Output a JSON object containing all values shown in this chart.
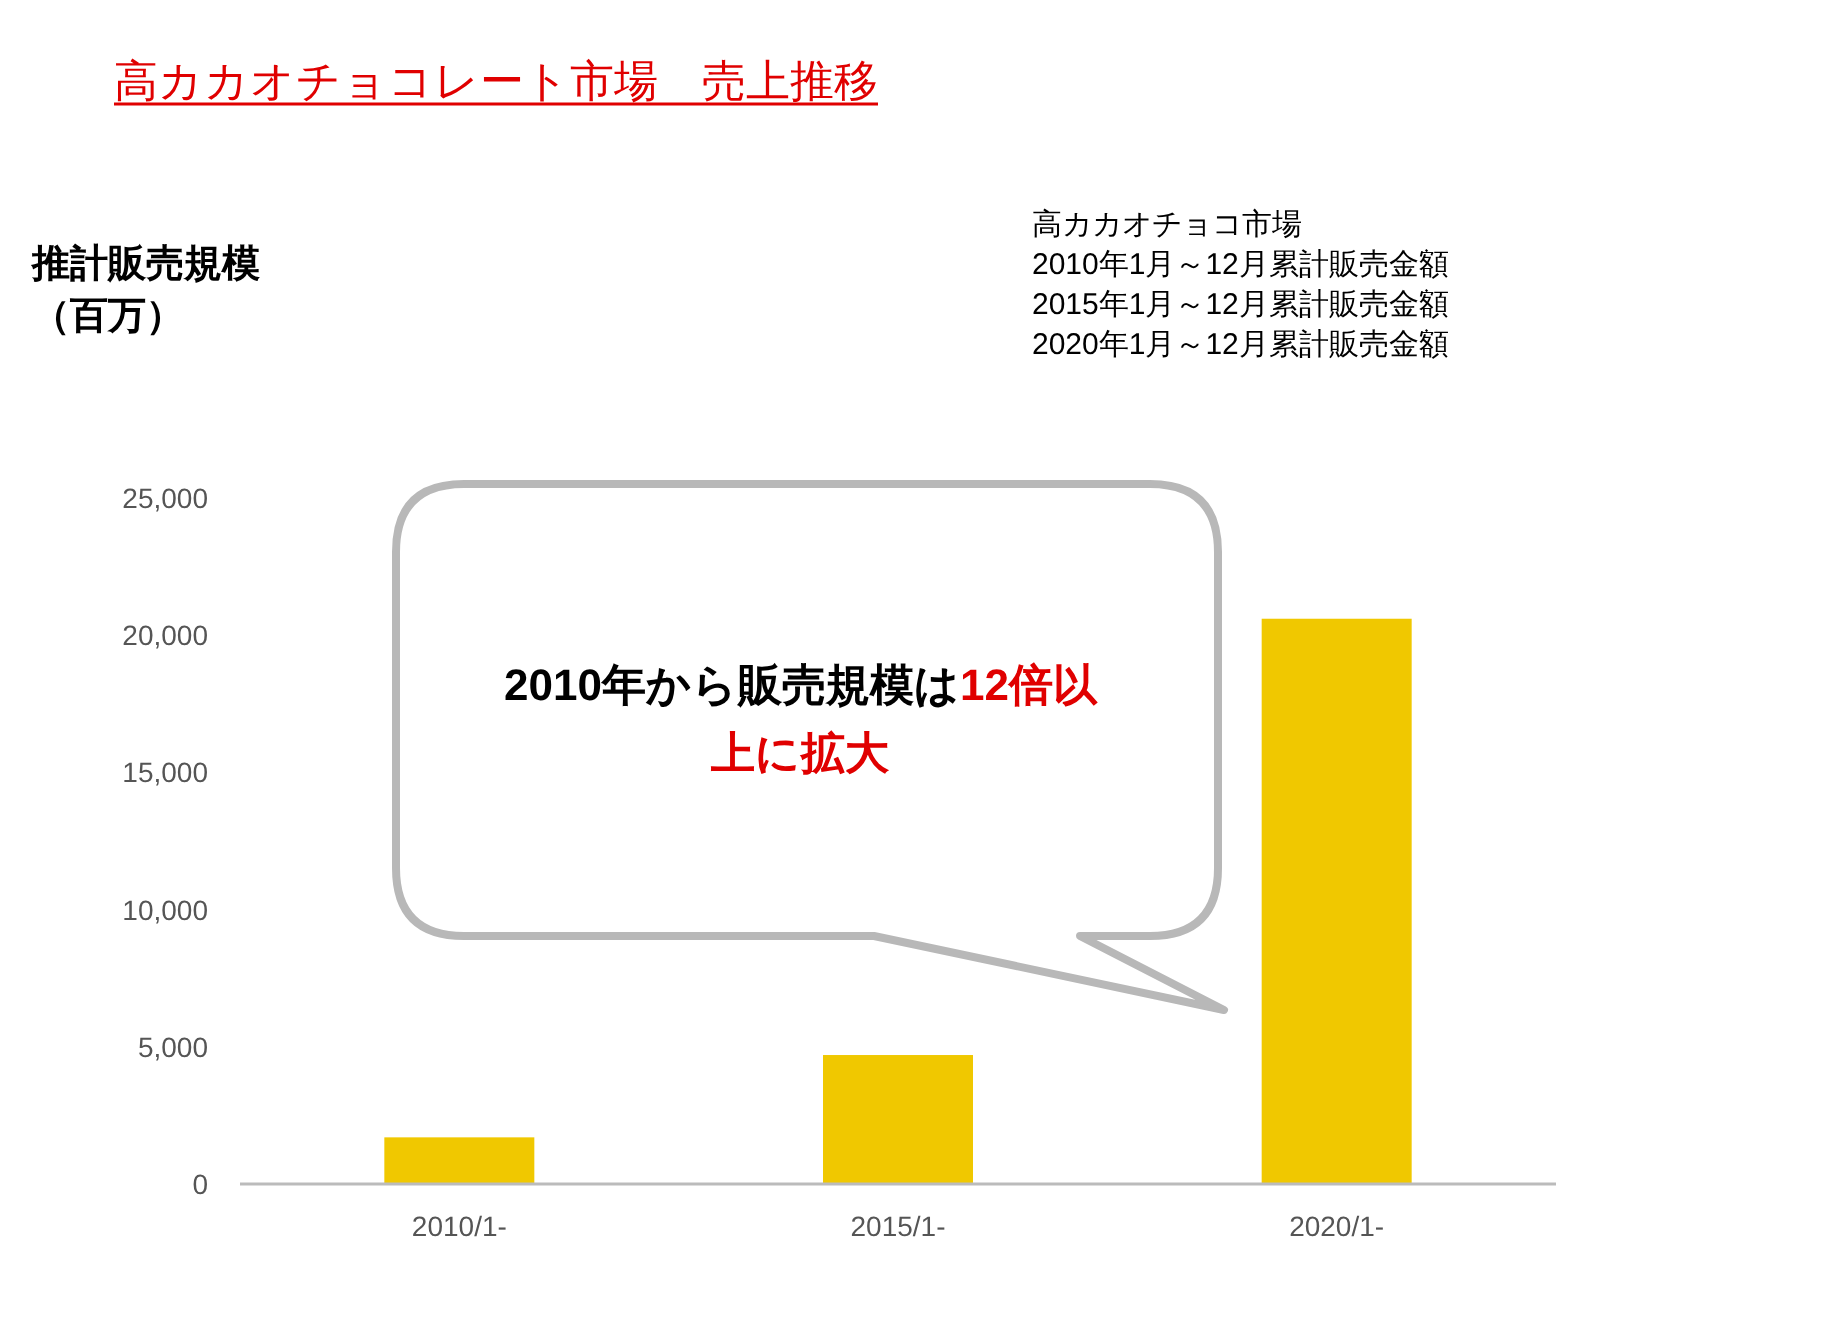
{
  "chart_data": {
    "type": "bar",
    "title": "高カカオチョコレート市場　売上推移",
    "categories": [
      "2010/1-",
      "2015/1-",
      "2020/1-"
    ],
    "values": [
      1700,
      4700,
      20600
    ],
    "color": "#f0c800",
    "ylim": [
      0,
      25000
    ],
    "yticks": [
      {
        "value": 0,
        "label": "0"
      },
      {
        "value": 5000,
        "label": "5,000"
      },
      {
        "value": 10000,
        "label": "10,000"
      },
      {
        "value": 15000,
        "label": "15,000"
      },
      {
        "value": 20000,
        "label": "20,000"
      },
      {
        "value": 25000,
        "label": "25,000"
      }
    ],
    "grid": false,
    "annotations": [
      "推計販売規模",
      "（百万）",
      "高カカオチョコ市場",
      "2010年1月～12月累計販売金額",
      "2015年1月～12月累計販売金額",
      "2020年1月～12月累計販売金額",
      "2010年から販売規模は",
      "12倍以上に拡大"
    ]
  }
}
